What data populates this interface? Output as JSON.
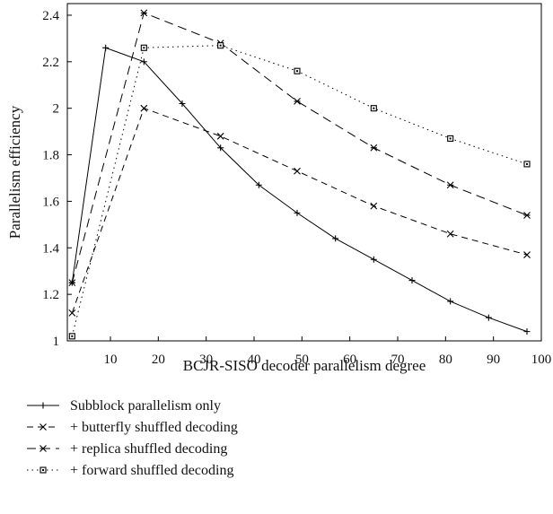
{
  "chart_data": {
    "type": "line",
    "title": "",
    "xlabel": "BCJR-SISO decoder parallelism degree",
    "ylabel": "Parallelism efficiency",
    "xlim": [
      1,
      100
    ],
    "ylim": [
      1,
      2.45
    ],
    "xticks": [
      10,
      20,
      30,
      40,
      50,
      60,
      70,
      80,
      90,
      100
    ],
    "yticks": [
      1,
      1.2,
      1.4,
      1.6,
      1.8,
      2,
      2.2,
      2.4
    ],
    "ytick_labels": [
      "1",
      "1.2",
      "1.4",
      "1.6",
      "1.8",
      "2",
      "2.2",
      "2.4"
    ],
    "grid": false,
    "legend_position": "below",
    "series": [
      {
        "name": "Subblock parallelism only",
        "marker": "plus",
        "dash": "solid",
        "x": [
          2,
          9,
          17,
          25,
          33,
          41,
          49,
          57,
          65,
          73,
          81,
          89,
          97
        ],
        "y": [
          1.25,
          2.26,
          2.2,
          2.02,
          1.83,
          1.67,
          1.55,
          1.44,
          1.35,
          1.26,
          1.17,
          1.1,
          1.04
        ]
      },
      {
        "name": "+ butterfly shuffled decoding",
        "marker": "x",
        "dash": "dashed",
        "x": [
          2,
          17,
          33,
          49,
          65,
          81,
          97
        ],
        "y": [
          1.12,
          2.0,
          1.88,
          1.73,
          1.58,
          1.46,
          1.37
        ]
      },
      {
        "name": "+ replica shuffled decoding",
        "marker": "star",
        "dash": "longdash",
        "x": [
          2,
          17,
          33,
          49,
          65,
          81,
          97
        ],
        "y": [
          1.25,
          2.41,
          2.28,
          2.03,
          1.83,
          1.67,
          1.54
        ]
      },
      {
        "name": "+ forward shuffled decoding",
        "marker": "square",
        "dash": "dotted",
        "x": [
          2,
          17,
          33,
          49,
          65,
          81,
          97
        ],
        "y": [
          1.02,
          2.26,
          2.27,
          2.16,
          2.0,
          1.87,
          1.76
        ]
      }
    ]
  }
}
